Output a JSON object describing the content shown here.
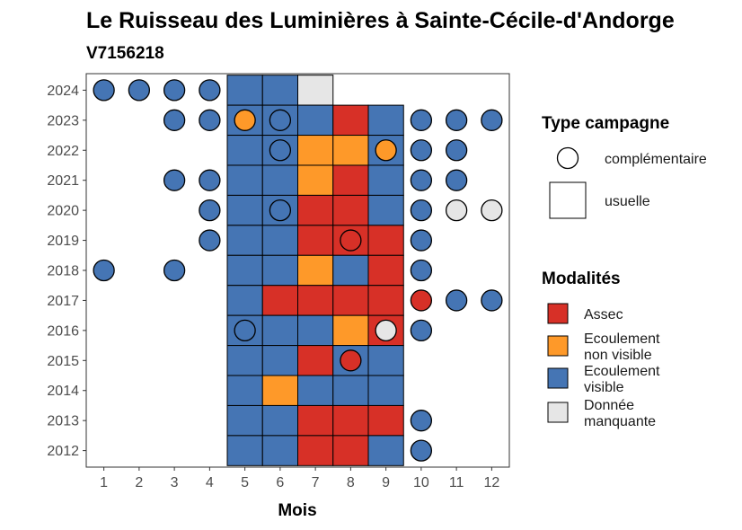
{
  "chart_data": {
    "type": "heatmap",
    "title": "Le Ruisseau des Luminières à Sainte-Cécile-d'Andorge",
    "subtitle": "V7156218",
    "xlabel": "Mois",
    "ylabel": "",
    "x_ticks": [
      "1",
      "2",
      "3",
      "4",
      "5",
      "6",
      "7",
      "8",
      "9",
      "10",
      "11",
      "12"
    ],
    "y_ticks": [
      "2012",
      "2013",
      "2014",
      "2015",
      "2016",
      "2017",
      "2018",
      "2019",
      "2020",
      "2021",
      "2022",
      "2023",
      "2024"
    ],
    "xlim": [
      0.5,
      12.5
    ],
    "ylim": [
      2011.45,
      2024.55
    ],
    "grid": false,
    "legend_position": "right",
    "colors": {
      "Assec": "#d73027",
      "Ecoulement non visible": "#fe9929",
      "Ecoulement visible": "#4575b4",
      "Donnée manquante": "#e6e6e6"
    },
    "legends": {
      "type_campagne": {
        "title": "Type campagne",
        "items": [
          {
            "label": "complémentaire",
            "shape": "circle"
          },
          {
            "label": "usuelle",
            "shape": "square"
          }
        ]
      },
      "modalites": {
        "title": "Modalités",
        "items": [
          {
            "key": "Assec",
            "lines": [
              "Assec"
            ]
          },
          {
            "key": "Ecoulement non visible",
            "lines": [
              "Ecoulement",
              "non visible"
            ]
          },
          {
            "key": "Ecoulement visible",
            "lines": [
              "Ecoulement",
              "visible"
            ]
          },
          {
            "key": "Donnée manquante",
            "lines": [
              "Donnée",
              "manquante"
            ]
          }
        ]
      }
    },
    "usuelle": [
      {
        "year": 2024,
        "month": 5,
        "m": "Ecoulement visible"
      },
      {
        "year": 2024,
        "month": 6,
        "m": "Ecoulement visible"
      },
      {
        "year": 2024,
        "month": 7,
        "m": "Donnée manquante"
      },
      {
        "year": 2023,
        "month": 5,
        "m": "Ecoulement visible"
      },
      {
        "year": 2023,
        "month": 6,
        "m": "Ecoulement visible"
      },
      {
        "year": 2023,
        "month": 7,
        "m": "Ecoulement visible"
      },
      {
        "year": 2023,
        "month": 8,
        "m": "Assec"
      },
      {
        "year": 2023,
        "month": 9,
        "m": "Ecoulement visible"
      },
      {
        "year": 2022,
        "month": 5,
        "m": "Ecoulement visible"
      },
      {
        "year": 2022,
        "month": 6,
        "m": "Ecoulement visible"
      },
      {
        "year": 2022,
        "month": 7,
        "m": "Ecoulement non visible"
      },
      {
        "year": 2022,
        "month": 8,
        "m": "Ecoulement non visible"
      },
      {
        "year": 2022,
        "month": 9,
        "m": "Ecoulement visible"
      },
      {
        "year": 2021,
        "month": 5,
        "m": "Ecoulement visible"
      },
      {
        "year": 2021,
        "month": 6,
        "m": "Ecoulement visible"
      },
      {
        "year": 2021,
        "month": 7,
        "m": "Ecoulement non visible"
      },
      {
        "year": 2021,
        "month": 8,
        "m": "Assec"
      },
      {
        "year": 2021,
        "month": 9,
        "m": "Ecoulement visible"
      },
      {
        "year": 2020,
        "month": 5,
        "m": "Ecoulement visible"
      },
      {
        "year": 2020,
        "month": 6,
        "m": "Ecoulement visible"
      },
      {
        "year": 2020,
        "month": 7,
        "m": "Assec"
      },
      {
        "year": 2020,
        "month": 8,
        "m": "Assec"
      },
      {
        "year": 2020,
        "month": 9,
        "m": "Ecoulement visible"
      },
      {
        "year": 2019,
        "month": 5,
        "m": "Ecoulement visible"
      },
      {
        "year": 2019,
        "month": 6,
        "m": "Ecoulement visible"
      },
      {
        "year": 2019,
        "month": 7,
        "m": "Assec"
      },
      {
        "year": 2019,
        "month": 8,
        "m": "Assec"
      },
      {
        "year": 2019,
        "month": 9,
        "m": "Assec"
      },
      {
        "year": 2018,
        "month": 5,
        "m": "Ecoulement visible"
      },
      {
        "year": 2018,
        "month": 6,
        "m": "Ecoulement visible"
      },
      {
        "year": 2018,
        "month": 7,
        "m": "Ecoulement non visible"
      },
      {
        "year": 2018,
        "month": 8,
        "m": "Ecoulement visible"
      },
      {
        "year": 2018,
        "month": 9,
        "m": "Assec"
      },
      {
        "year": 2017,
        "month": 5,
        "m": "Ecoulement visible"
      },
      {
        "year": 2017,
        "month": 6,
        "m": "Assec"
      },
      {
        "year": 2017,
        "month": 7,
        "m": "Assec"
      },
      {
        "year": 2017,
        "month": 8,
        "m": "Assec"
      },
      {
        "year": 2017,
        "month": 9,
        "m": "Assec"
      },
      {
        "year": 2016,
        "month": 5,
        "m": "Ecoulement visible"
      },
      {
        "year": 2016,
        "month": 6,
        "m": "Ecoulement visible"
      },
      {
        "year": 2016,
        "month": 7,
        "m": "Ecoulement visible"
      },
      {
        "year": 2016,
        "month": 8,
        "m": "Ecoulement non visible"
      },
      {
        "year": 2016,
        "month": 9,
        "m": "Assec"
      },
      {
        "year": 2015,
        "month": 5,
        "m": "Ecoulement visible"
      },
      {
        "year": 2015,
        "month": 6,
        "m": "Ecoulement visible"
      },
      {
        "year": 2015,
        "month": 7,
        "m": "Assec"
      },
      {
        "year": 2015,
        "month": 8,
        "m": "Ecoulement visible"
      },
      {
        "year": 2015,
        "month": 9,
        "m": "Ecoulement visible"
      },
      {
        "year": 2014,
        "month": 5,
        "m": "Ecoulement visible"
      },
      {
        "year": 2014,
        "month": 6,
        "m": "Ecoulement non visible"
      },
      {
        "year": 2014,
        "month": 7,
        "m": "Ecoulement visible"
      },
      {
        "year": 2014,
        "month": 8,
        "m": "Ecoulement visible"
      },
      {
        "year": 2014,
        "month": 9,
        "m": "Ecoulement visible"
      },
      {
        "year": 2013,
        "month": 5,
        "m": "Ecoulement visible"
      },
      {
        "year": 2013,
        "month": 6,
        "m": "Ecoulement visible"
      },
      {
        "year": 2013,
        "month": 7,
        "m": "Assec"
      },
      {
        "year": 2013,
        "month": 8,
        "m": "Assec"
      },
      {
        "year": 2013,
        "month": 9,
        "m": "Assec"
      },
      {
        "year": 2012,
        "month": 5,
        "m": "Ecoulement visible"
      },
      {
        "year": 2012,
        "month": 6,
        "m": "Ecoulement visible"
      },
      {
        "year": 2012,
        "month": 7,
        "m": "Assec"
      },
      {
        "year": 2012,
        "month": 8,
        "m": "Assec"
      },
      {
        "year": 2012,
        "month": 9,
        "m": "Ecoulement visible"
      }
    ],
    "complementaire": [
      {
        "year": 2024,
        "month": 1,
        "m": "Ecoulement visible"
      },
      {
        "year": 2024,
        "month": 2,
        "m": "Ecoulement visible"
      },
      {
        "year": 2024,
        "month": 3,
        "m": "Ecoulement visible"
      },
      {
        "year": 2024,
        "month": 4,
        "m": "Ecoulement visible"
      },
      {
        "year": 2023,
        "month": 3,
        "m": "Ecoulement visible"
      },
      {
        "year": 2023,
        "month": 4,
        "m": "Ecoulement visible"
      },
      {
        "year": 2023,
        "month": 5,
        "m": "Ecoulement non visible"
      },
      {
        "year": 2023,
        "month": 6,
        "m": "Ecoulement visible"
      },
      {
        "year": 2023,
        "month": 10,
        "m": "Ecoulement visible"
      },
      {
        "year": 2023,
        "month": 11,
        "m": "Ecoulement visible"
      },
      {
        "year": 2023,
        "month": 12,
        "m": "Ecoulement visible"
      },
      {
        "year": 2022,
        "month": 6,
        "m": "Ecoulement visible"
      },
      {
        "year": 2022,
        "month": 9,
        "m": "Ecoulement non visible"
      },
      {
        "year": 2022,
        "month": 10,
        "m": "Ecoulement visible"
      },
      {
        "year": 2022,
        "month": 11,
        "m": "Ecoulement visible"
      },
      {
        "year": 2021,
        "month": 3,
        "m": "Ecoulement visible"
      },
      {
        "year": 2021,
        "month": 4,
        "m": "Ecoulement visible"
      },
      {
        "year": 2021,
        "month": 10,
        "m": "Ecoulement visible"
      },
      {
        "year": 2021,
        "month": 11,
        "m": "Ecoulement visible"
      },
      {
        "year": 2020,
        "month": 4,
        "m": "Ecoulement visible"
      },
      {
        "year": 2020,
        "month": 6,
        "m": "Ecoulement visible"
      },
      {
        "year": 2020,
        "month": 10,
        "m": "Ecoulement visible"
      },
      {
        "year": 2020,
        "month": 11,
        "m": "Donnée manquante"
      },
      {
        "year": 2020,
        "month": 12,
        "m": "Donnée manquante"
      },
      {
        "year": 2019,
        "month": 4,
        "m": "Ecoulement visible"
      },
      {
        "year": 2019,
        "month": 8,
        "m": "Assec"
      },
      {
        "year": 2019,
        "month": 10,
        "m": "Ecoulement visible"
      },
      {
        "year": 2018,
        "month": 1,
        "m": "Ecoulement visible"
      },
      {
        "year": 2018,
        "month": 3,
        "m": "Ecoulement visible"
      },
      {
        "year": 2018,
        "month": 10,
        "m": "Ecoulement visible"
      },
      {
        "year": 2017,
        "month": 10,
        "m": "Assec"
      },
      {
        "year": 2017,
        "month": 11,
        "m": "Ecoulement visible"
      },
      {
        "year": 2017,
        "month": 12,
        "m": "Ecoulement visible"
      },
      {
        "year": 2016,
        "month": 5,
        "m": "Ecoulement visible"
      },
      {
        "year": 2016,
        "month": 9,
        "m": "Donnée manquante"
      },
      {
        "year": 2016,
        "month": 10,
        "m": "Ecoulement visible"
      },
      {
        "year": 2015,
        "month": 8,
        "m": "Assec"
      },
      {
        "year": 2013,
        "month": 10,
        "m": "Ecoulement visible"
      },
      {
        "year": 2012,
        "month": 10,
        "m": "Ecoulement visible"
      }
    ]
  }
}
